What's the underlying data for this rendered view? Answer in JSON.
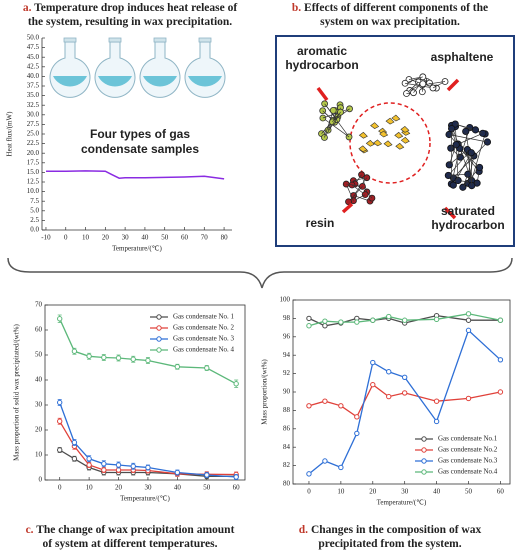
{
  "chart_data": [
    {
      "type": "line",
      "panel_label": "a.",
      "title": [
        "Temperature drop induces heat release of",
        "the system, resulting in wax precipitation."
      ],
      "x_label": "Temperature/(℃)",
      "y_label": "Heat flux/(mW)",
      "annotation": [
        "Four types of gas",
        "condensate samples"
      ],
      "x": [
        -10,
        0,
        10,
        20,
        23,
        27,
        30,
        40,
        50,
        60,
        70,
        80
      ],
      "values": [
        15.3,
        15.3,
        15.4,
        15.3,
        14.5,
        13.5,
        13.6,
        13.6,
        13.7,
        13.8,
        14.0,
        13.3
      ],
      "color": "#8a2be2",
      "xlim": [
        -12,
        84
      ],
      "xticks": [
        -10,
        0,
        10,
        20,
        30,
        40,
        50,
        60,
        70,
        80
      ],
      "ylim": [
        0,
        50
      ],
      "yticks": [
        {
          "value": 0,
          "label": "0.0"
        },
        {
          "value": 2.5,
          "label": "2.5"
        },
        {
          "value": 5,
          "label": "5.0"
        },
        {
          "value": 7.5,
          "label": "7.5"
        },
        {
          "value": 10,
          "label": "10.0"
        },
        {
          "value": 12.5,
          "label": "12.5"
        },
        {
          "value": 15,
          "label": "15.0"
        },
        {
          "value": 17.5,
          "label": "17.5"
        },
        {
          "value": 20,
          "label": "20.0"
        },
        {
          "value": 22.5,
          "label": "22.5"
        },
        {
          "value": 25,
          "label": "25.0"
        },
        {
          "value": 27.5,
          "label": "27.5"
        },
        {
          "value": 30,
          "label": "30.0"
        },
        {
          "value": 32.5,
          "label": "32.5"
        },
        {
          "value": 35,
          "label": "35.0"
        },
        {
          "value": 37.5,
          "label": "37.5"
        },
        {
          "value": 40,
          "label": "40.0"
        },
        {
          "value": 42.5,
          "label": "42.5"
        },
        {
          "value": 45,
          "label": "45.0"
        },
        {
          "value": 47.5,
          "label": "47.5"
        },
        {
          "value": 50,
          "label": "50.0"
        }
      ]
    },
    {
      "type": "line",
      "panel_label": "c.",
      "title": [
        "The change of wax precipitation amount",
        "of system at different temperatures."
      ],
      "x_label": "Temperature/(℃)",
      "y_label": "Mass proportion of solid wax precipitated/(wt%)",
      "x": [
        0,
        5,
        10,
        15,
        20,
        25,
        30,
        40,
        50,
        60
      ],
      "xlim": [
        -5,
        63
      ],
      "xticks": [
        0,
        10,
        20,
        30,
        40,
        50,
        60
      ],
      "ylim": [
        0,
        70
      ],
      "yticks": [
        0,
        10,
        20,
        30,
        40,
        50,
        60,
        70
      ],
      "legend": "upper right",
      "marker": "circle",
      "series": [
        {
          "name": "Gas condensate No. 1",
          "color": "#4d4d4d",
          "values": [
            12,
            8.5,
            5,
            3,
            3,
            3,
            3,
            2.5,
            1.5,
            1.5
          ],
          "errors": [
            1,
            1,
            1,
            1,
            1,
            1,
            1,
            1,
            1,
            1
          ]
        },
        {
          "name": "Gas condensate No. 2",
          "color": "#e0413a",
          "values": [
            23.5,
            13.5,
            6,
            4,
            4,
            4,
            3.8,
            2.5,
            2.3,
            2.2
          ],
          "errors": [
            1.2,
            1.2,
            1,
            1,
            1,
            1,
            1,
            1,
            1,
            1
          ]
        },
        {
          "name": "Gas condensate No. 3",
          "color": "#2e6fd6",
          "values": [
            31,
            15,
            8.5,
            6.5,
            6,
            5.5,
            5,
            3,
            2,
            1.2
          ],
          "errors": [
            1.2,
            1.2,
            1.2,
            1.2,
            1.2,
            1.2,
            1,
            1,
            1,
            1
          ]
        },
        {
          "name": "Gas condensate No. 4",
          "color": "#5cb87a",
          "values": [
            64.5,
            51.5,
            49.5,
            49,
            48.8,
            48.3,
            47.8,
            45.3,
            44.8,
            38.5
          ],
          "errors": [
            1.5,
            1.2,
            1.2,
            1.2,
            1.2,
            1.2,
            1.2,
            1,
            1,
            1.5
          ]
        }
      ]
    },
    {
      "type": "line",
      "panel_label": "d.",
      "title": [
        "Changes in the composition of wax",
        "precipitated from the system."
      ],
      "x_label": "Temperature/(℃)",
      "y_label": "Mass proportion/(wt%)",
      "x": [
        0,
        5,
        10,
        15,
        20,
        25,
        30,
        40,
        50,
        60
      ],
      "xlim": [
        -5,
        63
      ],
      "xticks": [
        0,
        10,
        20,
        30,
        40,
        50,
        60
      ],
      "ylim": [
        80,
        100
      ],
      "yticks": [
        80,
        82,
        84,
        86,
        88,
        90,
        92,
        94,
        96,
        98,
        100
      ],
      "legend": "lower right",
      "marker": "circle",
      "series": [
        {
          "name": "Gas condensate No.1",
          "color": "#4d4d4d",
          "values": [
            98,
            97.2,
            97.5,
            98,
            97.8,
            98,
            97.5,
            98.3,
            97.8,
            97.8
          ]
        },
        {
          "name": "Gas condensate No.2",
          "color": "#e0413a",
          "values": [
            88.5,
            89,
            88.5,
            87.3,
            90.8,
            89.5,
            89.9,
            89,
            89.3,
            90
          ]
        },
        {
          "name": "Gas condensate No.3",
          "color": "#2e6fd6",
          "values": [
            81.1,
            82.5,
            81.8,
            85.5,
            93.2,
            92.2,
            91.6,
            86.8,
            96.7,
            93.5
          ]
        },
        {
          "name": "Gas condensate No.4",
          "color": "#5cb87a",
          "values": [
            97.2,
            97.7,
            97.6,
            97.6,
            97.8,
            98.2,
            97.8,
            97.9,
            98.5,
            97.8
          ]
        }
      ]
    }
  ],
  "diagram": {
    "panel_label": "b.",
    "title": [
      "Effects of different components of the",
      "system on wax precipitation."
    ],
    "labels": [
      [
        "aromatic",
        "hydrocarbon"
      ],
      [
        "asphaltene"
      ],
      [
        "resin"
      ],
      [
        "saturated",
        "hydrocarbon"
      ]
    ]
  }
}
